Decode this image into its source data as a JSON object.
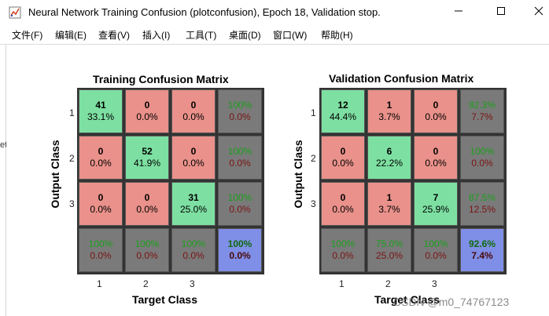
{
  "window": {
    "title": "Neural Network Training Confusion (plotconfusion), Epoch 18, Validation stop."
  },
  "menu": [
    "文件(F)",
    "编辑(E)",
    "查看(V)",
    "插入(I)",
    "工具(T)",
    "桌面(D)",
    "窗口(W)",
    "帮助(H)"
  ],
  "left_strip_glyph": "et",
  "training": {
    "title": "Training Confusion Matrix",
    "ylabel": "Output Class",
    "xlabel": "Target Class",
    "row_ticks": [
      "1",
      "2",
      "3"
    ],
    "col_ticks": [
      "1",
      "2",
      "3"
    ],
    "rows": [
      [
        [
          "41",
          "33.1%"
        ],
        [
          "0",
          "0.0%"
        ],
        [
          "0",
          "0.0%"
        ],
        [
          "100%",
          "0.0%"
        ]
      ],
      [
        [
          "0",
          "0.0%"
        ],
        [
          "52",
          "41.9%"
        ],
        [
          "0",
          "0.0%"
        ],
        [
          "100%",
          "0.0%"
        ]
      ],
      [
        [
          "0",
          "0.0%"
        ],
        [
          "0",
          "0.0%"
        ],
        [
          "31",
          "25.0%"
        ],
        [
          "100%",
          "0.0%"
        ]
      ],
      [
        [
          "100%",
          "0.0%"
        ],
        [
          "100%",
          "0.0%"
        ],
        [
          "100%",
          "0.0%"
        ],
        [
          "100%",
          "0.0%"
        ]
      ]
    ]
  },
  "validation": {
    "title": "Validation Confusion Matrix",
    "ylabel": "Output Class",
    "xlabel": "Target Class",
    "row_ticks": [
      "1",
      "2",
      "3"
    ],
    "col_ticks": [
      "1",
      "2",
      "3"
    ],
    "rows": [
      [
        [
          "12",
          "44.4%"
        ],
        [
          "1",
          "3.7%"
        ],
        [
          "0",
          "0.0%"
        ],
        [
          "92.3%",
          "7.7%"
        ]
      ],
      [
        [
          "0",
          "0.0%"
        ],
        [
          "6",
          "22.2%"
        ],
        [
          "0",
          "0.0%"
        ],
        [
          "100%",
          "0.0%"
        ]
      ],
      [
        [
          "0",
          "0.0%"
        ],
        [
          "1",
          "3.7%"
        ],
        [
          "7",
          "25.9%"
        ],
        [
          "87.5%",
          "12.5%"
        ]
      ],
      [
        [
          "100%",
          "0.0%"
        ],
        [
          "75.0%",
          "25.0%"
        ],
        [
          "100%",
          "0.0%"
        ],
        [
          "92.6%",
          "7.4%"
        ]
      ]
    ]
  },
  "colors": {
    "correct": "#7de0a2",
    "incorrect": "#e9918a",
    "summary": "#7a7a7a",
    "overall": "#7f8ee6"
  },
  "icons": {
    "app": "matlab-figure-icon",
    "minimize": "minimize-icon",
    "maximize": "maximize-icon",
    "close": "close-icon"
  },
  "watermark": "CSDN @m0_74767123"
}
